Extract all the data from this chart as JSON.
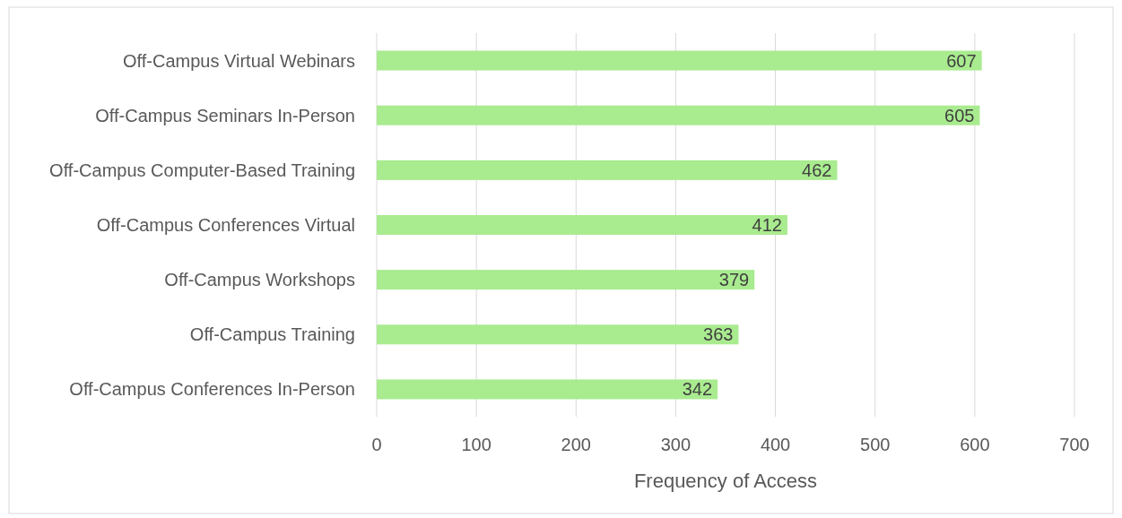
{
  "chart_data": {
    "type": "bar",
    "orientation": "horizontal",
    "xlabel": "Frequency of Access",
    "categories": [
      "Off-Campus Virtual Webinars",
      "Off-Campus Seminars In-Person",
      "Off-Campus Computer-Based Training",
      "Off-Campus Conferences Virtual",
      "Off-Campus Workshops",
      "Off-Campus Training",
      "Off-Campus Conferences In-Person"
    ],
    "values": [
      607,
      605,
      462,
      412,
      379,
      363,
      342
    ],
    "color": "#a9eb8f",
    "xlim": [
      0,
      700
    ],
    "xticks": [
      0,
      100,
      200,
      300,
      400,
      500,
      600,
      700
    ],
    "grid": "x",
    "data_labels": true
  }
}
